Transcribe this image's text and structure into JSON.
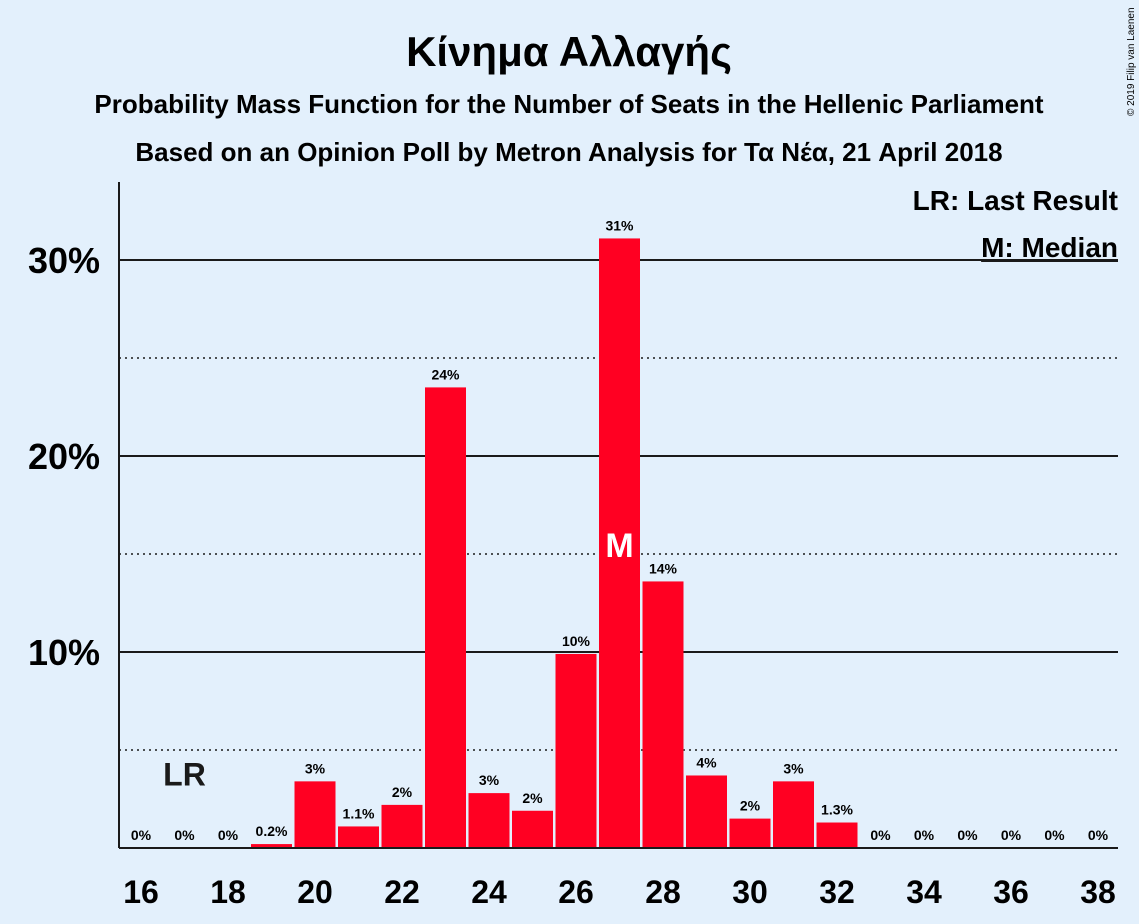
{
  "chart_data": {
    "type": "bar",
    "title": "Κίνημα Αλλαγής",
    "subtitle": "Probability Mass Function for the Number of Seats in the Hellenic Parliament",
    "subtitle2": "Based on an Opinion Poll by Metron Analysis for Τα Νέα, 21 April 2018",
    "copyright": "© 2019 Filip van Laenen",
    "xlabel": "",
    "ylabel": "",
    "categories": [
      16,
      17,
      18,
      19,
      20,
      21,
      22,
      23,
      24,
      25,
      26,
      27,
      28,
      29,
      30,
      31,
      32,
      33,
      34,
      35,
      36,
      37,
      38
    ],
    "values": [
      0,
      0,
      0,
      0.2,
      3.4,
      1.1,
      2.2,
      23.5,
      2.8,
      1.9,
      9.9,
      31.1,
      13.6,
      3.7,
      1.5,
      3.4,
      1.3,
      0,
      0,
      0,
      0,
      0,
      0
    ],
    "data_labels": [
      "0%",
      "0%",
      "0%",
      "0.2%",
      "3%",
      "1.1%",
      "2%",
      "24%",
      "3%",
      "2%",
      "10%",
      "31%",
      "14%",
      "4%",
      "2%",
      "3%",
      "1.3%",
      "0%",
      "0%",
      "0%",
      "0%",
      "0%",
      "0%"
    ],
    "x_tick_labels": [
      "16",
      "18",
      "20",
      "22",
      "24",
      "26",
      "28",
      "30",
      "32",
      "34",
      "36",
      "38"
    ],
    "y_tick_labels": [
      "10%",
      "20%",
      "30%"
    ],
    "ylim": [
      0,
      34
    ],
    "last_result_seat": 17,
    "last_result_marker": "LR",
    "median_seat": 27,
    "median_marker": "M",
    "legend": [
      "LR: Last Result",
      "M: Median"
    ],
    "legend_position": "top-right",
    "grid": true,
    "colors": {
      "bar": "#ff0022",
      "background": "#e3f0fc",
      "text": "#1a1a1a",
      "median_marker": "#ffffff"
    }
  }
}
